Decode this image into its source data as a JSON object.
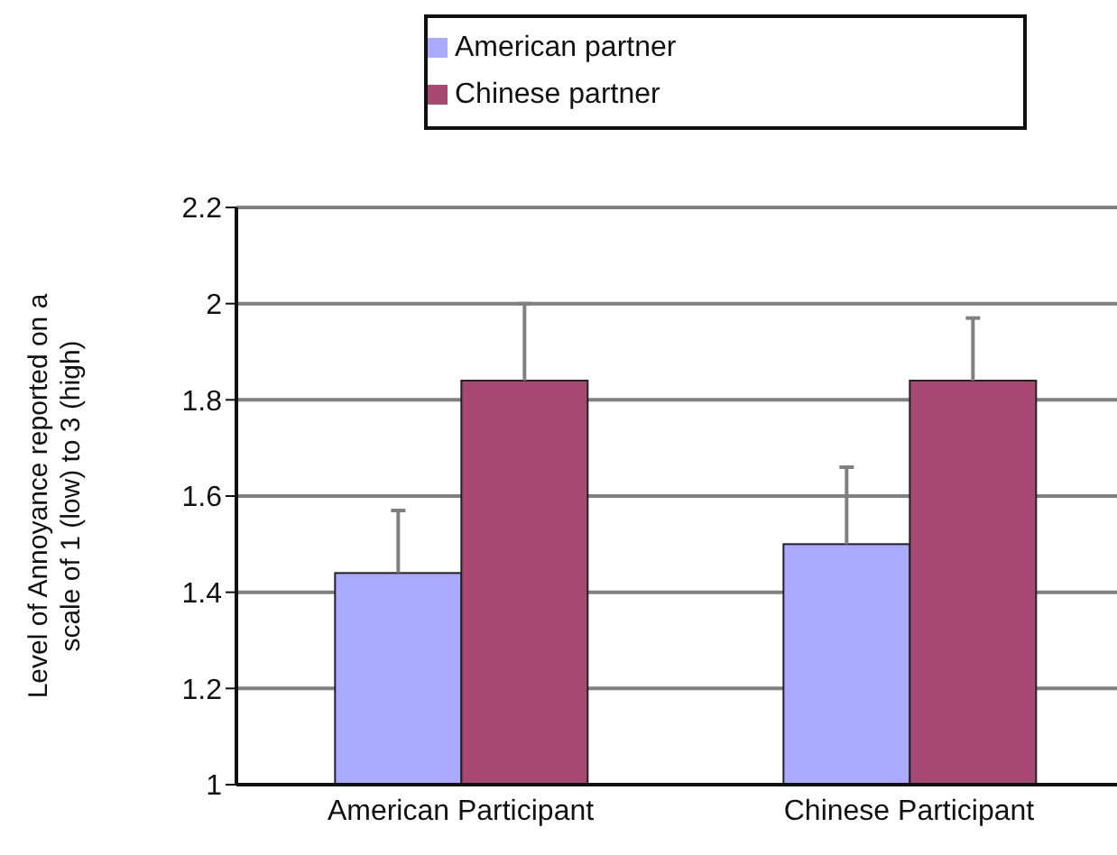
{
  "chart_data": {
    "type": "bar",
    "ylabel": "Level of Annoyance reported on a\nscale of  1 (low) to 3 (high)",
    "categories": [
      "American Participant",
      "Chinese Participant"
    ],
    "series": [
      {
        "name": "American partner",
        "color": "#aaaaff",
        "values": [
          1.44,
          1.5
        ],
        "errors": [
          [
            1.44,
            1.57
          ],
          [
            1.5,
            1.66
          ]
        ]
      },
      {
        "name": "Chinese partner",
        "color": "#a84874",
        "values": [
          1.84,
          1.84
        ],
        "errors": [
          [
            1.84,
            2.0
          ],
          [
            1.84,
            1.97
          ]
        ]
      }
    ],
    "ylim": [
      1,
      2.2
    ],
    "yticks": [
      1,
      1.2,
      1.4,
      1.6,
      1.8,
      2,
      2.2
    ],
    "grid": "y",
    "legend": "top"
  }
}
